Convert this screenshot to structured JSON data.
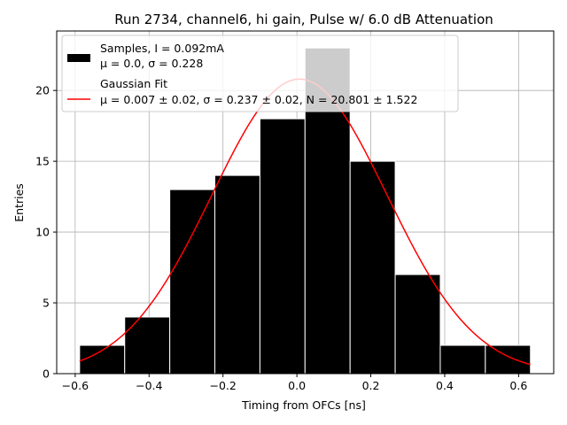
{
  "chart_data": {
    "type": "bar",
    "title": "Run 2734, channel6, hi gain, Pulse w/ 6.0 dB Attenuation",
    "xlabel": "Timing from OFCs [ns]",
    "ylabel": "Entries",
    "xlim": [
      -0.65,
      0.695
    ],
    "ylim": [
      0,
      24.2
    ],
    "xticks": [
      -0.6,
      -0.4,
      -0.2,
      0.0,
      0.2,
      0.4,
      0.6
    ],
    "xtick_labels": [
      "−0.6",
      "−0.4",
      "−0.2",
      "0.0",
      "0.2",
      "0.4",
      "0.6"
    ],
    "yticks": [
      0,
      5,
      10,
      15,
      20
    ],
    "ytick_labels": [
      "0",
      "5",
      "10",
      "15",
      "20"
    ],
    "grid": true,
    "legend_position": "upper-left",
    "series": [
      {
        "name": "Samples, I = 0.092mA",
        "name_line2": "μ = 0.0, σ = 0.228",
        "kind": "histogram",
        "color": "#000000",
        "bin_edges": [
          -0.588,
          -0.466,
          -0.344,
          -0.222,
          -0.1,
          0.022,
          0.144,
          0.266,
          0.388,
          0.51,
          0.632
        ],
        "counts": [
          2,
          4,
          13,
          14,
          18,
          23,
          15,
          7,
          2,
          2
        ]
      },
      {
        "name": "Gaussian Fit",
        "name_line2": "μ = 0.007 ± 0.02, σ = 0.237 ± 0.02, N = 20.801 ± 1.522",
        "kind": "line",
        "color": "#ff0000",
        "mu": 0.007,
        "sigma": 0.237,
        "N": 20.801,
        "x_range": [
          -0.588,
          0.632
        ]
      }
    ]
  }
}
